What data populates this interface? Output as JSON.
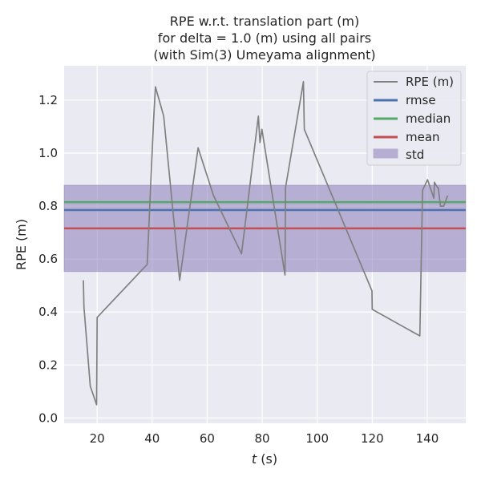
{
  "chart_data": {
    "type": "line",
    "title": [
      "RPE w.r.t. translation part (m)",
      "for delta = 1.0 (m) using all pairs",
      "(with Sim(3) Umeyama alignment)"
    ],
    "xlabel_italic": "t",
    "xlabel_unit": "(s)",
    "ylabel": "RPE (m)",
    "xlim": [
      8,
      154
    ],
    "ylim": [
      -0.02,
      1.33
    ],
    "xticks": [
      20,
      40,
      60,
      80,
      100,
      120,
      140
    ],
    "yticks": [
      0.0,
      0.2,
      0.4,
      0.6,
      0.8,
      1.0,
      1.2
    ],
    "grid": true,
    "legend_position": "top-right",
    "colors": {
      "background": "#eaeaf2",
      "grid": "#ffffff",
      "rpe": "#808080",
      "rmse": "#4c72b0",
      "median": "#55a868",
      "mean": "#c44e52",
      "std_fill": "#8172b3"
    },
    "series": [
      {
        "name": "RPE (m)",
        "x": [
          15.0,
          15.2,
          17.5,
          19.8,
          20.0,
          38.2,
          40.5,
          41.2,
          44.2,
          50.0,
          56.7,
          62.3,
          72.5,
          78.6,
          79.2,
          79.9,
          88.3,
          88.5,
          95.0,
          95.3,
          119.9,
          120.0,
          137.3,
          138.3,
          140.1,
          142.4,
          142.6,
          143.7,
          144.0,
          144.8,
          146.0,
          147.4
        ],
        "y": [
          0.52,
          0.42,
          0.12,
          0.05,
          0.38,
          0.58,
          1.12,
          1.25,
          1.14,
          0.52,
          1.02,
          0.84,
          0.62,
          1.14,
          1.04,
          1.09,
          0.54,
          0.87,
          1.27,
          1.09,
          0.48,
          0.41,
          0.31,
          0.86,
          0.9,
          0.83,
          0.89,
          0.87,
          0.87,
          0.8,
          0.8,
          0.84
        ]
      }
    ],
    "stats": [
      {
        "name": "rmse",
        "value": 0.785
      },
      {
        "name": "median",
        "value": 0.815
      },
      {
        "name": "mean",
        "value": 0.716
      }
    ],
    "std": {
      "name": "std",
      "lower": 0.553,
      "upper": 0.879
    },
    "legend": [
      "RPE (m)",
      "rmse",
      "median",
      "mean",
      "std"
    ]
  }
}
